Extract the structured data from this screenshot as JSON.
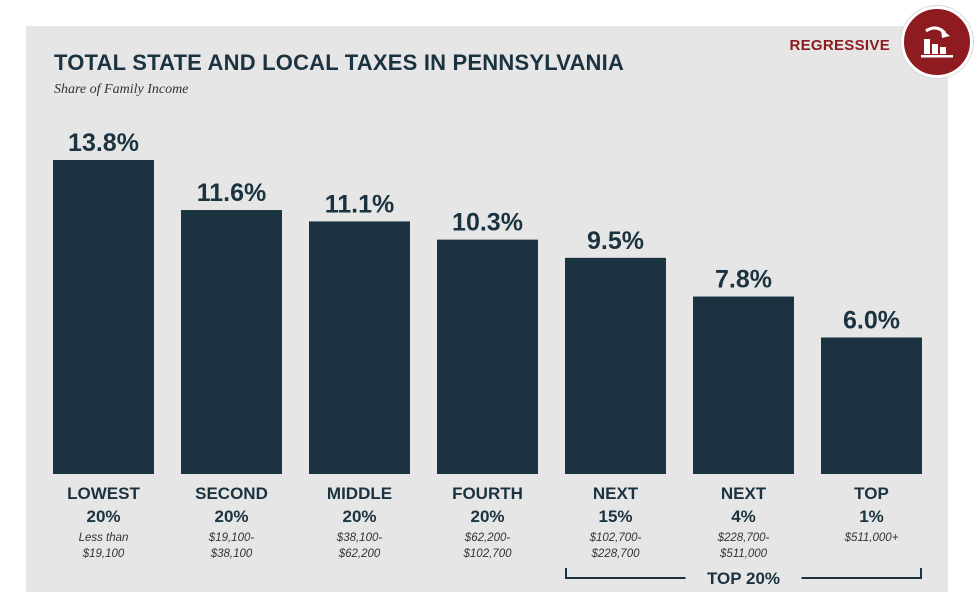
{
  "badge": {
    "label": "REGRESSIVE",
    "icon": "regressive-bar-chart-icon"
  },
  "colors": {
    "bar": "#1b3340",
    "accent": "#8e1b20",
    "panel": "#e6e6e6"
  },
  "chart_data": {
    "type": "bar",
    "title": "TOTAL STATE AND LOCAL TAXES IN PENNSYLVANIA",
    "subtitle": "Share of Family Income",
    "categories": [
      "LOWEST 20%",
      "SECOND 20%",
      "MIDDLE 20%",
      "FOURTH 20%",
      "NEXT 15%",
      "NEXT 4%",
      "TOP 1%"
    ],
    "category_lines": [
      [
        "LOWEST",
        "20%"
      ],
      [
        "SECOND",
        "20%"
      ],
      [
        "MIDDLE",
        "20%"
      ],
      [
        "FOURTH",
        "20%"
      ],
      [
        "NEXT",
        "15%"
      ],
      [
        "NEXT",
        "4%"
      ],
      [
        "TOP",
        "1%"
      ]
    ],
    "income_ranges": [
      [
        "Less than",
        "$19,100"
      ],
      [
        "$19,100-",
        "$38,100"
      ],
      [
        "$38,100-",
        "$62,200"
      ],
      [
        "$62,200-",
        "$102,700"
      ],
      [
        "$102,700-",
        "$228,700"
      ],
      [
        "$228,700-",
        "$511,000"
      ],
      [
        "$511,000+"
      ]
    ],
    "values": [
      13.8,
      11.6,
      11.1,
      10.3,
      9.5,
      7.8,
      6.0
    ],
    "value_labels": [
      "13.8%",
      "11.6%",
      "11.1%",
      "10.3%",
      "9.5%",
      "7.8%",
      "6.0%"
    ],
    "ylim": [
      0,
      13.8
    ],
    "xlabel": "",
    "ylabel": "",
    "grid": false,
    "bracket": {
      "label": "TOP 20%",
      "from_index": 4,
      "to_index": 6
    }
  }
}
